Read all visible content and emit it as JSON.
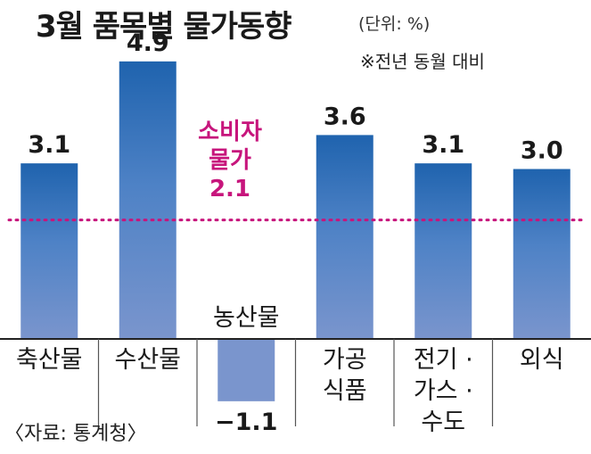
{
  "title": "3월 품목별 물가동향",
  "unit": "(단위: %)",
  "subtitle": "※전년 동월 대비",
  "source": "〈자료: 통계청〉",
  "reference": {
    "lines": [
      "소비자",
      "물가",
      "2.1"
    ],
    "value": 2.1,
    "color": "#c7157c"
  },
  "colors": {
    "bar_top_dark": "#1f63ae",
    "bar_mid": "#4e82c6",
    "bar_light": "#7a95cd",
    "axis": "#222222"
  },
  "chart_data": {
    "type": "bar",
    "categories": [
      [
        "축산물"
      ],
      [
        "수산물"
      ],
      [
        "농산물"
      ],
      [
        "가공",
        "식품"
      ],
      [
        "전기 ·",
        "가스 ·",
        "수도"
      ],
      [
        "외식"
      ]
    ],
    "values": [
      3.1,
      4.9,
      -1.1,
      3.6,
      3.1,
      3.0
    ],
    "value_labels": [
      "3.1",
      "4.9",
      "−1.1",
      "3.6",
      "3.1",
      "3.0"
    ],
    "ylim": [
      -1.5,
      5.3
    ],
    "reference_line": 2.1,
    "title": "3월 품목별 물가동향",
    "xlabel": "",
    "ylabel": ""
  }
}
